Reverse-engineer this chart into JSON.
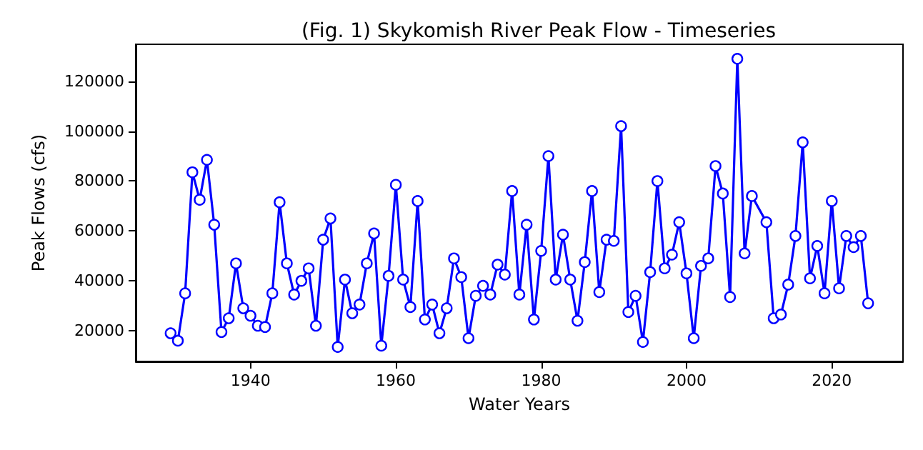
{
  "chart_data": {
    "type": "line",
    "title": "(Fig. 1) Skykomish River Peak Flow - Timeseries",
    "xlabel": "Water Years",
    "ylabel": "Peak Flows (cfs)",
    "x": [
      1929,
      1930,
      1931,
      1932,
      1933,
      1934,
      1935,
      1936,
      1937,
      1938,
      1939,
      1940,
      1941,
      1942,
      1943,
      1944,
      1945,
      1946,
      1947,
      1948,
      1949,
      1950,
      1951,
      1952,
      1953,
      1954,
      1955,
      1956,
      1957,
      1958,
      1959,
      1960,
      1961,
      1962,
      1963,
      1964,
      1965,
      1966,
      1967,
      1968,
      1969,
      1970,
      1971,
      1972,
      1973,
      1974,
      1975,
      1976,
      1977,
      1978,
      1979,
      1980,
      1981,
      1982,
      1983,
      1984,
      1985,
      1986,
      1987,
      1988,
      1989,
      1990,
      1991,
      1992,
      1993,
      1994,
      1995,
      1996,
      1997,
      1998,
      1999,
      2000,
      2001,
      2002,
      2003,
      2004,
      2005,
      2006,
      2007,
      2008,
      2009,
      2011,
      2012,
      2013,
      2014,
      2015,
      2016,
      2017,
      2018,
      2019,
      2020,
      2021,
      2022,
      2023,
      2024,
      2025
    ],
    "series": [
      {
        "color": "#0000ff",
        "values": [
          19000,
          16000,
          35000,
          83500,
          72500,
          88500,
          62500,
          19500,
          25000,
          47000,
          29000,
          26000,
          22000,
          21500,
          35000,
          71500,
          47000,
          34500,
          40000,
          45000,
          22000,
          56500,
          65000,
          13500,
          40500,
          27000,
          30500,
          47000,
          59000,
          14000,
          42000,
          78500,
          40500,
          29500,
          72000,
          24500,
          30500,
          19000,
          29000,
          49000,
          41500,
          17000,
          34000,
          38000,
          34500,
          46500,
          42500,
          76000,
          34500,
          62500,
          24500,
          52000,
          90000,
          40500,
          58500,
          40500,
          24000,
          47500,
          76000,
          35500,
          56500,
          56000,
          102000,
          27500,
          34000,
          15500,
          43500,
          80000,
          45000,
          50500,
          63500,
          43000,
          17000,
          46000,
          49000,
          86000,
          75000,
          33500,
          129000,
          51000,
          74000,
          63500,
          25000,
          26500,
          38500,
          58000,
          95500,
          41000,
          54000,
          35000,
          72000,
          37000,
          58000,
          53500,
          58000,
          31000
        ]
      }
    ],
    "xlim": [
      1924.2,
      2029.8
    ],
    "xticks": [
      1940,
      1960,
      1980,
      2000,
      2020
    ],
    "ylim": [
      7700,
      134800
    ],
    "yticks": [
      20000,
      40000,
      60000,
      80000,
      100000,
      120000
    ],
    "marker": "circle",
    "line_style": "solid",
    "grid": false
  }
}
